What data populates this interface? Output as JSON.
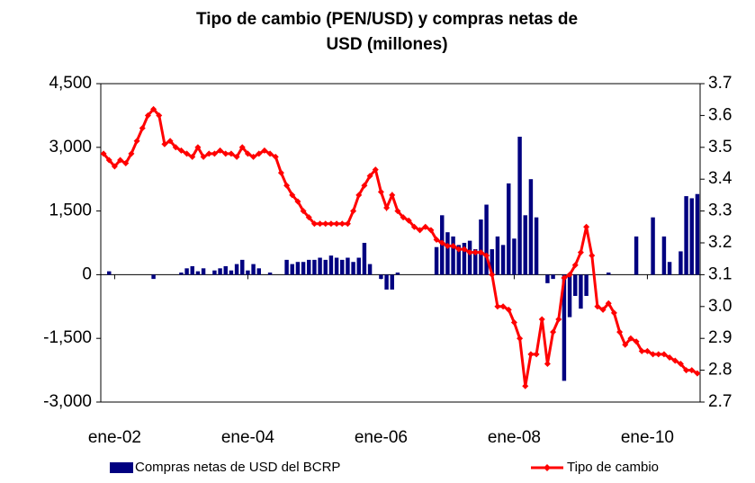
{
  "chart_data": {
    "type": "bar-line",
    "title": [
      "Tipo de cambio (PEN/USD) y compras netas de",
      "USD (millones)"
    ],
    "categories": [
      null,
      null,
      "ene-02",
      null,
      null,
      null,
      null,
      null,
      null,
      null,
      null,
      null,
      null,
      null,
      null,
      null,
      null,
      null,
      null,
      null,
      null,
      null,
      null,
      null,
      null,
      null,
      "ene-04",
      null,
      null,
      null,
      null,
      null,
      null,
      null,
      null,
      null,
      null,
      null,
      null,
      null,
      null,
      null,
      null,
      null,
      null,
      null,
      null,
      null,
      null,
      null,
      "ene-06",
      null,
      null,
      null,
      null,
      null,
      null,
      null,
      null,
      null,
      null,
      null,
      null,
      null,
      null,
      null,
      null,
      null,
      null,
      null,
      null,
      null,
      null,
      null,
      "ene-08",
      null,
      null,
      null,
      null,
      null,
      null,
      null,
      null,
      null,
      null,
      null,
      null,
      null,
      null,
      null,
      null,
      null,
      null,
      null,
      null,
      null,
      null,
      null,
      "ene-10",
      null,
      null,
      null,
      null,
      null,
      null,
      null,
      null,
      null
    ],
    "series": [
      {
        "name": "Compras netas de USD del BCRP",
        "color": "#000080",
        "axis": "y",
        "kind": "bar",
        "values": [
          0,
          80,
          0,
          0,
          0,
          0,
          0,
          0,
          0,
          -100,
          0,
          0,
          0,
          0,
          50,
          150,
          200,
          80,
          150,
          0,
          100,
          150,
          200,
          100,
          250,
          350,
          100,
          250,
          150,
          0,
          50,
          0,
          0,
          350,
          250,
          300,
          300,
          350,
          350,
          400,
          350,
          450,
          400,
          350,
          400,
          300,
          400,
          750,
          250,
          0,
          -100,
          -350,
          -350,
          50,
          0,
          0,
          0,
          0,
          0,
          0,
          650,
          1400,
          1000,
          900,
          700,
          750,
          800,
          600,
          1300,
          1650,
          600,
          900,
          700,
          2150,
          850,
          3250,
          1400,
          2250,
          1350,
          0,
          -200,
          -100,
          0,
          -2500,
          -1000,
          -500,
          -800,
          -500,
          0,
          0,
          0,
          50,
          0,
          0,
          0,
          0,
          900,
          0,
          0,
          1350,
          0,
          900,
          300,
          0,
          550,
          1850,
          1800,
          1900
        ]
      },
      {
        "name": "Tipo de cambio",
        "color": "#ff0000",
        "axis": "y2",
        "kind": "line",
        "values": [
          3.48,
          3.46,
          3.44,
          3.46,
          3.45,
          3.48,
          3.52,
          3.56,
          3.6,
          3.62,
          3.6,
          3.51,
          3.52,
          3.5,
          3.49,
          3.48,
          3.47,
          3.5,
          3.47,
          3.48,
          3.48,
          3.49,
          3.48,
          3.48,
          3.47,
          3.5,
          3.48,
          3.47,
          3.48,
          3.49,
          3.48,
          3.47,
          3.42,
          3.38,
          3.35,
          3.33,
          3.3,
          3.28,
          3.26,
          3.26,
          3.26,
          3.26,
          3.26,
          3.26,
          3.26,
          3.3,
          3.35,
          3.38,
          3.41,
          3.43,
          3.36,
          3.31,
          3.35,
          3.3,
          3.28,
          3.27,
          3.25,
          3.24,
          3.25,
          3.24,
          3.21,
          3.2,
          3.19,
          3.19,
          3.18,
          3.18,
          3.17,
          3.17,
          3.17,
          3.16,
          3.1,
          3.0,
          3.0,
          2.99,
          2.95,
          2.9,
          2.75,
          2.85,
          2.85,
          2.96,
          2.82,
          2.92,
          2.96,
          3.09,
          3.1,
          3.13,
          3.17,
          3.25,
          3.16,
          3.0,
          2.99,
          3.01,
          2.98,
          2.92,
          2.88,
          2.9,
          2.89,
          2.86,
          2.86,
          2.85,
          2.85,
          2.85,
          2.84,
          2.83,
          2.82,
          2.8,
          2.8,
          2.79
        ]
      }
    ],
    "ylim": [
      -3000,
      4500
    ],
    "yticks": [
      {
        "value": -3000,
        "label": "-3,000"
      },
      {
        "value": -1500,
        "label": "-1,500"
      },
      0,
      {
        "value": 1500,
        "label": "1,500"
      },
      {
        "value": 3000,
        "label": "3,000"
      },
      {
        "value": 4500,
        "label": "4,500"
      }
    ],
    "y2lim": [
      2.7,
      3.7
    ],
    "y2ticks": [
      2.7,
      2.8,
      2.9,
      {
        "value": 3,
        "label": "3.0"
      },
      3.1,
      3.2,
      3.3,
      3.4,
      3.5,
      3.6,
      3.7
    ],
    "legend": "bottom"
  }
}
